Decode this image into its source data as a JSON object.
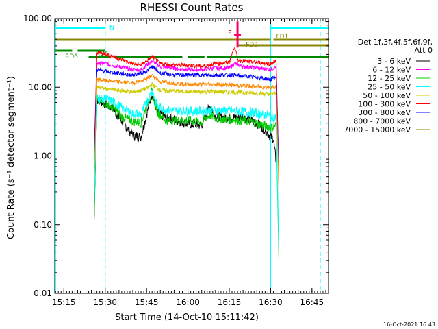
{
  "chart_data": {
    "type": "line",
    "title": "RHESSI Count Rates",
    "xlabel": "Start Time (14-Oct-10 15:11:42)",
    "ylabel": "Count Rate (s⁻¹ detector segment⁻¹)",
    "yscale": "log",
    "ylim": [
      0.01,
      100
    ],
    "xlim": [
      "15:11:42",
      "16:51:00"
    ],
    "x_ticks": [
      "15:15",
      "15:30",
      "15:45",
      "16:00",
      "16:15",
      "16:30",
      "16:45"
    ],
    "y_ticks": [
      "0.01",
      "0.10",
      "1.00",
      "10.00",
      "100.00"
    ],
    "grid": false,
    "legend_placement": "right",
    "legend_header": [
      "Det 1f,3f,4f,5f,6f,9f,",
      "Att 0"
    ],
    "timestamp": "16-Oct-2021 16:43",
    "series": [
      {
        "name": "3 - 6 keV",
        "color": "#000000",
        "times": [
          "15:26",
          "15:27",
          "15:30",
          "15:33",
          "15:36",
          "15:40",
          "15:43",
          "15:45",
          "15:47",
          "15:49",
          "15:52",
          "15:55",
          "16:00",
          "16:05",
          "16:08",
          "16:10",
          "16:15",
          "16:20",
          "16:25",
          "16:28",
          "16:30",
          "16:31",
          "16:32"
        ],
        "values": [
          0.12,
          6.5,
          5.8,
          4.8,
          3.2,
          2.0,
          1.9,
          4.0,
          8.2,
          4.2,
          3.6,
          3.4,
          2.9,
          2.8,
          5.4,
          3.8,
          3.6,
          3.7,
          3.0,
          2.4,
          1.9,
          1.8,
          0.8
        ]
      },
      {
        "name": "6 - 12 keV",
        "color": "#ff00ff",
        "times": [
          "15:26",
          "15:27",
          "15:30",
          "15:35",
          "15:40",
          "15:43",
          "15:45",
          "15:47",
          "15:50",
          "15:55",
          "16:00",
          "16:05",
          "16:10",
          "16:15",
          "16:17",
          "16:20",
          "16:25",
          "16:30",
          "16:32",
          "16:33"
        ],
        "values": [
          0.7,
          22,
          22,
          20,
          18,
          18,
          21,
          24,
          20,
          19,
          18,
          18,
          19,
          19,
          22,
          20,
          19,
          18,
          20,
          0.5
        ]
      },
      {
        "name": "12 - 25 keV",
        "color": "#00cc00",
        "times": [
          "15:26",
          "15:27",
          "15:30",
          "15:33",
          "15:36",
          "15:40",
          "15:43",
          "15:45",
          "15:47",
          "15:49",
          "15:52",
          "15:55",
          "16:00",
          "16:05",
          "16:08",
          "16:10",
          "16:15",
          "16:20",
          "16:25",
          "16:30",
          "16:32",
          "16:33"
        ],
        "values": [
          0.13,
          6.3,
          6.0,
          5.0,
          3.7,
          3.2,
          3.0,
          5.5,
          8.5,
          4.3,
          3.3,
          3.3,
          3.3,
          3.1,
          4.0,
          3.5,
          3.4,
          3.3,
          3.0,
          2.6,
          2.8,
          0.03
        ]
      },
      {
        "name": "25 - 50 keV",
        "color": "#00ffff",
        "times": [
          "15:26",
          "15:27",
          "15:30",
          "15:33",
          "15:36",
          "15:40",
          "15:43",
          "15:45",
          "15:47",
          "15:49",
          "15:52",
          "15:55",
          "16:00",
          "16:05",
          "16:10",
          "16:15",
          "16:20",
          "16:25",
          "16:30",
          "16:32",
          "16:33"
        ],
        "values": [
          0.2,
          7.0,
          6.8,
          6.2,
          5.0,
          4.2,
          4.0,
          6.0,
          9.0,
          5.2,
          4.7,
          4.6,
          4.5,
          4.5,
          4.6,
          4.6,
          4.4,
          4.2,
          3.8,
          3.6,
          0.04
        ]
      },
      {
        "name": "50 - 100 keV",
        "color": "#cccc00",
        "times": [
          "15:26",
          "15:27",
          "15:30",
          "15:35",
          "15:40",
          "15:45",
          "15:47",
          "15:50",
          "15:55",
          "16:00",
          "16:10",
          "16:20",
          "16:30",
          "16:32",
          "16:33"
        ],
        "values": [
          1.0,
          10.0,
          9.5,
          9.0,
          8.5,
          9.5,
          11.0,
          9.0,
          8.8,
          8.6,
          8.6,
          8.4,
          8.0,
          8.2,
          0.5
        ]
      },
      {
        "name": "100 - 300 keV",
        "color": "#ff0000",
        "times": [
          "15:26",
          "15:27",
          "15:30",
          "15:35",
          "15:40",
          "15:43",
          "15:45",
          "15:47",
          "15:50",
          "15:55",
          "16:00",
          "16:05",
          "16:10",
          "16:15",
          "16:17",
          "16:18",
          "16:20",
          "16:25",
          "16:30",
          "16:32",
          "16:33"
        ],
        "values": [
          1.0,
          32,
          31,
          26,
          22,
          21,
          24,
          28,
          22,
          21,
          21,
          20,
          22,
          23,
          40,
          25,
          24,
          23,
          22,
          24,
          0.5
        ]
      },
      {
        "name": "300 - 800 keV",
        "color": "#0000ff",
        "times": [
          "15:26",
          "15:27",
          "15:30",
          "15:35",
          "15:40",
          "15:45",
          "15:47",
          "15:50",
          "15:55",
          "16:00",
          "16:05",
          "16:10",
          "16:15",
          "16:20",
          "16:25",
          "16:30",
          "16:32",
          "16:33"
        ],
        "values": [
          1.0,
          18,
          17,
          16,
          15,
          17,
          20,
          16,
          15,
          15,
          15,
          15,
          15,
          14.5,
          14,
          13,
          14,
          0.5
        ]
      },
      {
        "name": "800 - 7000 keV",
        "color": "#ff8800",
        "times": [
          "15:26",
          "15:27",
          "15:30",
          "15:35",
          "15:40",
          "15:45",
          "15:47",
          "15:50",
          "15:55",
          "16:00",
          "16:10",
          "16:20",
          "16:30",
          "16:32",
          "16:33"
        ],
        "values": [
          0.5,
          13,
          12.5,
          12,
          11.5,
          13,
          15,
          12,
          11.5,
          11,
          11,
          10.5,
          10,
          10,
          0.3
        ]
      },
      {
        "name": "7000 - 15000 keV",
        "color": "#888800",
        "times": [],
        "values": []
      }
    ],
    "annotations": [
      {
        "label": "N",
        "color": "#00ffff",
        "type": "night",
        "segments": [
          [
            "15:11:42",
            "15:30"
          ],
          [
            "16:30",
            "16:51:00"
          ]
        ],
        "boundaries": [
          "15:12",
          "15:30",
          "16:30",
          "16:48"
        ]
      },
      {
        "label": "FD1",
        "color": "#888800",
        "type": "flag",
        "segments": [
          [
            "15:11:42",
            "16:30"
          ],
          [
            "16:31",
            "16:51:00"
          ]
        ]
      },
      {
        "label": "FD2",
        "color": "#888800",
        "type": "flag",
        "segments": [
          [
            "16:18",
            "16:51:00"
          ]
        ]
      },
      {
        "label": "RD6",
        "color": "#008800",
        "type": "flag",
        "segments": [
          [
            "15:11:42",
            "15:18"
          ],
          [
            "15:20",
            "15:30"
          ]
        ]
      },
      {
        "label": "RD6",
        "color": "#008800",
        "type": "flag",
        "segments": [
          [
            "15:24",
            "15:32"
          ],
          [
            "15:33",
            "15:58"
          ],
          [
            "16:00",
            "16:06"
          ],
          [
            "16:07",
            "16:51:00"
          ]
        ]
      },
      {
        "label": "F",
        "color": "#ff0066",
        "type": "flare",
        "time": "16:18",
        "value": 60
      }
    ]
  }
}
